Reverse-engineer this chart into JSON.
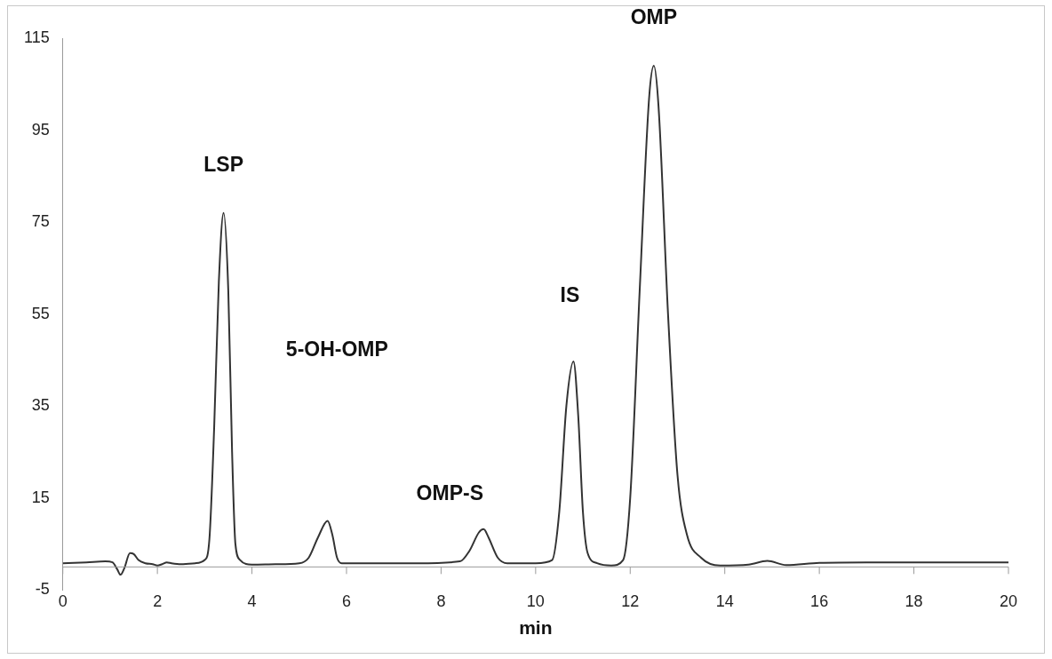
{
  "chart_data": {
    "type": "line",
    "xlabel": "min",
    "x": [
      0,
      0.5,
      0.9,
      1.05,
      1.15,
      1.22,
      1.3,
      1.42,
      1.5,
      1.6,
      1.75,
      1.9,
      2.0,
      2.1,
      2.2,
      2.3,
      2.5,
      2.8,
      3.0,
      3.1,
      3.2,
      3.3,
      3.4,
      3.5,
      3.58,
      3.65,
      3.75,
      4.0,
      4.5,
      5.0,
      5.2,
      5.4,
      5.6,
      5.7,
      5.8,
      5.9,
      6.5,
      7.5,
      8.4,
      8.6,
      8.8,
      8.9,
      9.0,
      9.2,
      9.4,
      10.0,
      10.35,
      10.5,
      10.65,
      10.8,
      10.9,
      11.0,
      11.1,
      11.3,
      11.6,
      11.85,
      12.0,
      12.2,
      12.4,
      12.5,
      12.6,
      12.8,
      13.0,
      13.2,
      13.5,
      13.9,
      14.5,
      14.9,
      15.3,
      16.0,
      17.0,
      20.0
    ],
    "series": [
      {
        "color": "#333333",
        "values": [
          0.8,
          1.0,
          1.2,
          1.0,
          -0.5,
          -1.7,
          -0.3,
          3.0,
          2.8,
          1.5,
          0.8,
          0.6,
          0.3,
          0.6,
          1.0,
          0.8,
          0.6,
          0.8,
          1.5,
          6,
          30,
          62,
          77,
          60,
          25,
          5,
          1.5,
          0.5,
          0.6,
          0.8,
          2,
          6.5,
          10,
          7,
          2,
          0.8,
          0.8,
          0.8,
          1.2,
          3.5,
          7.5,
          8.2,
          6.5,
          2,
          0.8,
          0.8,
          1.5,
          12,
          35,
          44.7,
          33,
          12,
          3,
          0.8,
          0.3,
          1.5,
          15,
          60,
          102,
          109,
          100,
          55,
          20,
          7,
          2,
          0.3,
          0.5,
          1.3,
          0.4,
          0.9,
          1,
          1
        ]
      }
    ],
    "xlim": [
      0,
      20
    ],
    "xticks": [
      0,
      2,
      4,
      6,
      8,
      10,
      12,
      14,
      16,
      18,
      20
    ],
    "ylim": [
      -5,
      115
    ],
    "yticks": [
      -5,
      15,
      35,
      55,
      75,
      95,
      115
    ],
    "grid": false,
    "legend": false,
    "marker": "none",
    "line_style": "solid",
    "annotations": [
      {
        "text": "LSP",
        "x": 3.4,
        "y": 77
      },
      "5-OH-OMP",
      {
        "text": "OMP-S",
        "x": 8.9,
        "y": 8.2
      },
      {
        "text": "IS",
        "x": 10.8,
        "y": 44.7
      },
      {
        "text": "OMP",
        "x": 12.5,
        "y": 109
      }
    ]
  }
}
